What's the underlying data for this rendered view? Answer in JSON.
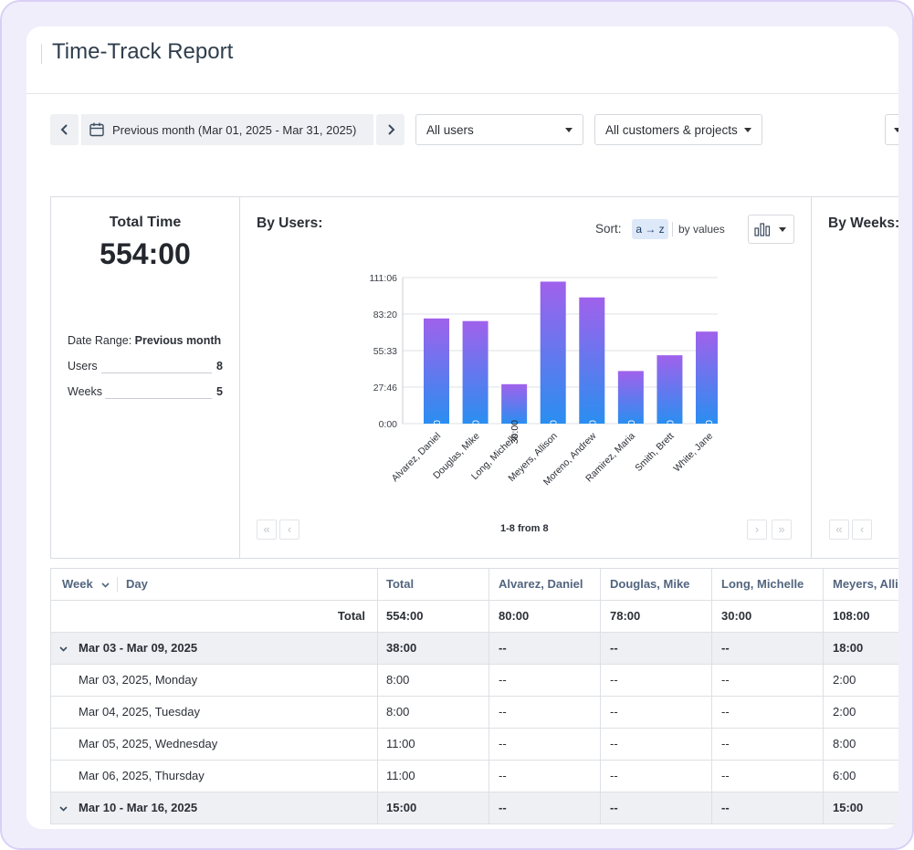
{
  "page": {
    "title": "Time-Track Report"
  },
  "toolbar": {
    "date_range": "Previous month (Mar 01, 2025 - Mar 31, 2025)",
    "users_select": "All users",
    "projects_select": "All customers & projects"
  },
  "summary": {
    "total_title": "Total Time",
    "total_value": "554:00",
    "date_range_label": "Date Range:",
    "date_range_value": "Previous month",
    "users_label": "Users",
    "users_value": "8",
    "weeks_label": "Weeks",
    "weeks_value": "5"
  },
  "by_users": {
    "title": "By Users:",
    "sort_label": "Sort:",
    "sort_az": "a → z",
    "sort_values": "by values",
    "pager_info": "1-8 from 8"
  },
  "by_weeks": {
    "title": "By Weeks:"
  },
  "chart_data": {
    "type": "bar",
    "categories": [
      "Alvarez, Daniel",
      "Douglas, Mike",
      "Long, Michelle",
      "Meyers, Allison",
      "Moreno, Andrew",
      "Ramirez, Maria",
      "Smith, Brett",
      "White, Jane"
    ],
    "values": [
      80,
      78,
      30,
      108,
      96,
      40,
      52,
      70
    ],
    "value_labels": [
      "80:00",
      "78:00",
      "30:00",
      "108:00",
      "96:00",
      "40:00",
      "52:00",
      "70:00"
    ],
    "ytick_labels": [
      "0:00",
      "27:46",
      "55:33",
      "83:20",
      "111:06"
    ],
    "ytick_values": [
      0,
      27.7667,
      55.55,
      83.3333,
      111.1
    ],
    "ylim": [
      0,
      111.1
    ],
    "grid": true,
    "colors": {
      "bar_top": "#a061ec",
      "bar_bottom": "#2a8ef0",
      "grid": "#dfe2e6"
    }
  },
  "table": {
    "header": {
      "week": "Week",
      "day": "Day",
      "columns": [
        "Total",
        "Alvarez, Daniel",
        "Douglas, Mike",
        "Long, Michelle",
        "Meyers, Alli"
      ]
    },
    "total_row": {
      "label": "Total",
      "values": [
        "554:00",
        "80:00",
        "78:00",
        "30:00",
        "108:00"
      ]
    },
    "rows": [
      {
        "kind": "week",
        "label": "Mar 03 - Mar 09, 2025",
        "values": [
          "38:00",
          "--",
          "--",
          "--",
          "18:00"
        ]
      },
      {
        "kind": "day",
        "label": "Mar 03, 2025, Monday",
        "values": [
          "8:00",
          "--",
          "--",
          "--",
          "2:00"
        ]
      },
      {
        "kind": "day",
        "label": "Mar 04, 2025, Tuesday",
        "values": [
          "8:00",
          "--",
          "--",
          "--",
          "2:00"
        ]
      },
      {
        "kind": "day",
        "label": "Mar 05, 2025, Wednesday",
        "values": [
          "11:00",
          "--",
          "--",
          "--",
          "8:00"
        ]
      },
      {
        "kind": "day",
        "label": "Mar 06, 2025, Thursday",
        "values": [
          "11:00",
          "--",
          "--",
          "--",
          "6:00"
        ]
      },
      {
        "kind": "week",
        "label": "Mar 10 - Mar 16, 2025",
        "values": [
          "15:00",
          "--",
          "--",
          "--",
          "15:00"
        ]
      }
    ]
  }
}
